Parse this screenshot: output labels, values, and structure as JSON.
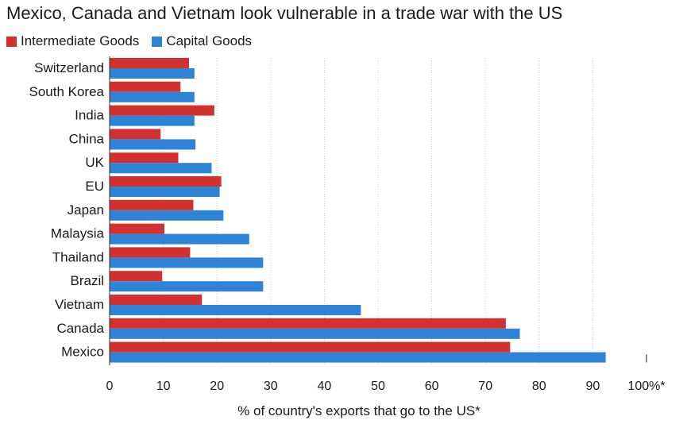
{
  "chart_data": {
    "type": "bar",
    "orientation": "horizontal",
    "title": "Mexico, Canada and Vietnam look vulnerable in a trade war with the US",
    "xlabel": "% of country's exports that go to the US*",
    "ylabel": "",
    "xlim": [
      0,
      100
    ],
    "ticks": [
      0,
      10,
      20,
      30,
      40,
      50,
      60,
      70,
      80,
      90,
      100
    ],
    "tick_labels": [
      "0",
      "10",
      "20",
      "30",
      "40",
      "50",
      "60",
      "70",
      "80",
      "90",
      "100%*"
    ],
    "categories": [
      "Switzerland",
      "South Korea",
      "India",
      "China",
      "UK",
      "EU",
      "Japan",
      "Malaysia",
      "Thailand",
      "Brazil",
      "Vietnam",
      "Canada",
      "Mexico"
    ],
    "series": [
      {
        "name": "Intermediate Goods",
        "color": "#d2312f",
        "values": [
          14.8,
          13.2,
          19.5,
          9.5,
          12.8,
          20.8,
          15.6,
          10.2,
          15.0,
          9.8,
          17.2,
          73.8,
          74.6
        ]
      },
      {
        "name": "Capital Goods",
        "color": "#2f83d6",
        "values": [
          15.8,
          15.8,
          15.8,
          16.0,
          19.0,
          20.5,
          21.2,
          26.0,
          28.6,
          28.6,
          46.8,
          76.4,
          92.4
        ]
      }
    ],
    "legend_position": "top-left"
  }
}
